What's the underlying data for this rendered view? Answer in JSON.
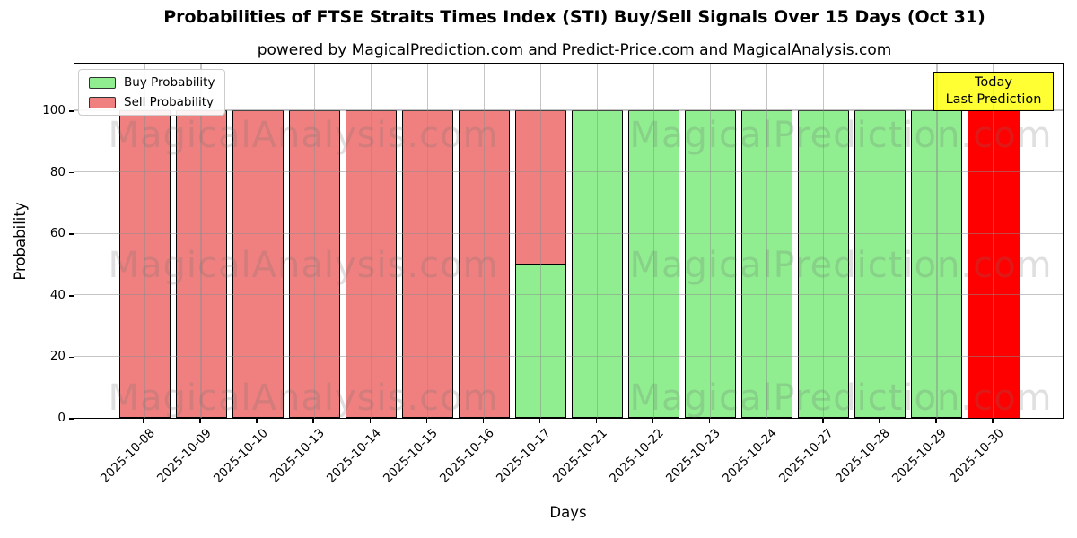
{
  "figure": {
    "title": "Probabilities of FTSE Straits Times Index (STI) Buy/Sell Signals Over 15 Days (Oct 31)",
    "subtitle": "powered by MagicalPrediction.com and Predict-Price.com and MagicalAnalysis.com"
  },
  "legend": {
    "items": [
      {
        "label": "Buy Probability",
        "color": "#90ee90"
      },
      {
        "label": "Sell Probability",
        "color": "#f08080"
      }
    ]
  },
  "annotation": {
    "line1": "Today",
    "line2": "Last Prediction",
    "bg_color": "#ffff00"
  },
  "watermarks": {
    "left": "MagicalAnalysis.com",
    "right": "MagicalPrediction.com"
  },
  "chart_data": {
    "type": "bar",
    "stacked": true,
    "title": "Probabilities of FTSE Straits Times Index (STI) Buy/Sell Signals Over 15 Days (Oct 31)",
    "xlabel": "Days",
    "ylabel": "Probability",
    "ylim": [
      0,
      115
    ],
    "yticks": [
      0,
      20,
      40,
      60,
      80,
      100
    ],
    "dashed_guideline_y": 110,
    "grid": true,
    "legend_position": "upper left",
    "bar_edge_color": "#000000",
    "categories": [
      "2025-10-08",
      "2025-10-09",
      "2025-10-10",
      "2025-10-13",
      "2025-10-14",
      "2025-10-15",
      "2025-10-16",
      "2025-10-17",
      "2025-10-21",
      "2025-10-22",
      "2025-10-23",
      "2025-10-24",
      "2025-10-27",
      "2025-10-28",
      "2025-10-29",
      "2025-10-30"
    ],
    "series": [
      {
        "name": "Buy Probability",
        "color": "#90ee90",
        "edge": true,
        "values": [
          0,
          0,
          0,
          0,
          0,
          0,
          0,
          50,
          100,
          100,
          100,
          100,
          100,
          100,
          100,
          0
        ]
      },
      {
        "name": "Sell Probability",
        "color": "#f08080",
        "edge": true,
        "values": [
          100,
          100,
          100,
          100,
          100,
          100,
          100,
          50,
          0,
          0,
          0,
          0,
          0,
          0,
          0,
          0
        ]
      },
      {
        "name": "Last Prediction (Today)",
        "color": "#ff0000",
        "edge": false,
        "values": [
          0,
          0,
          0,
          0,
          0,
          0,
          0,
          0,
          0,
          0,
          0,
          0,
          0,
          0,
          0,
          100
        ]
      }
    ]
  }
}
